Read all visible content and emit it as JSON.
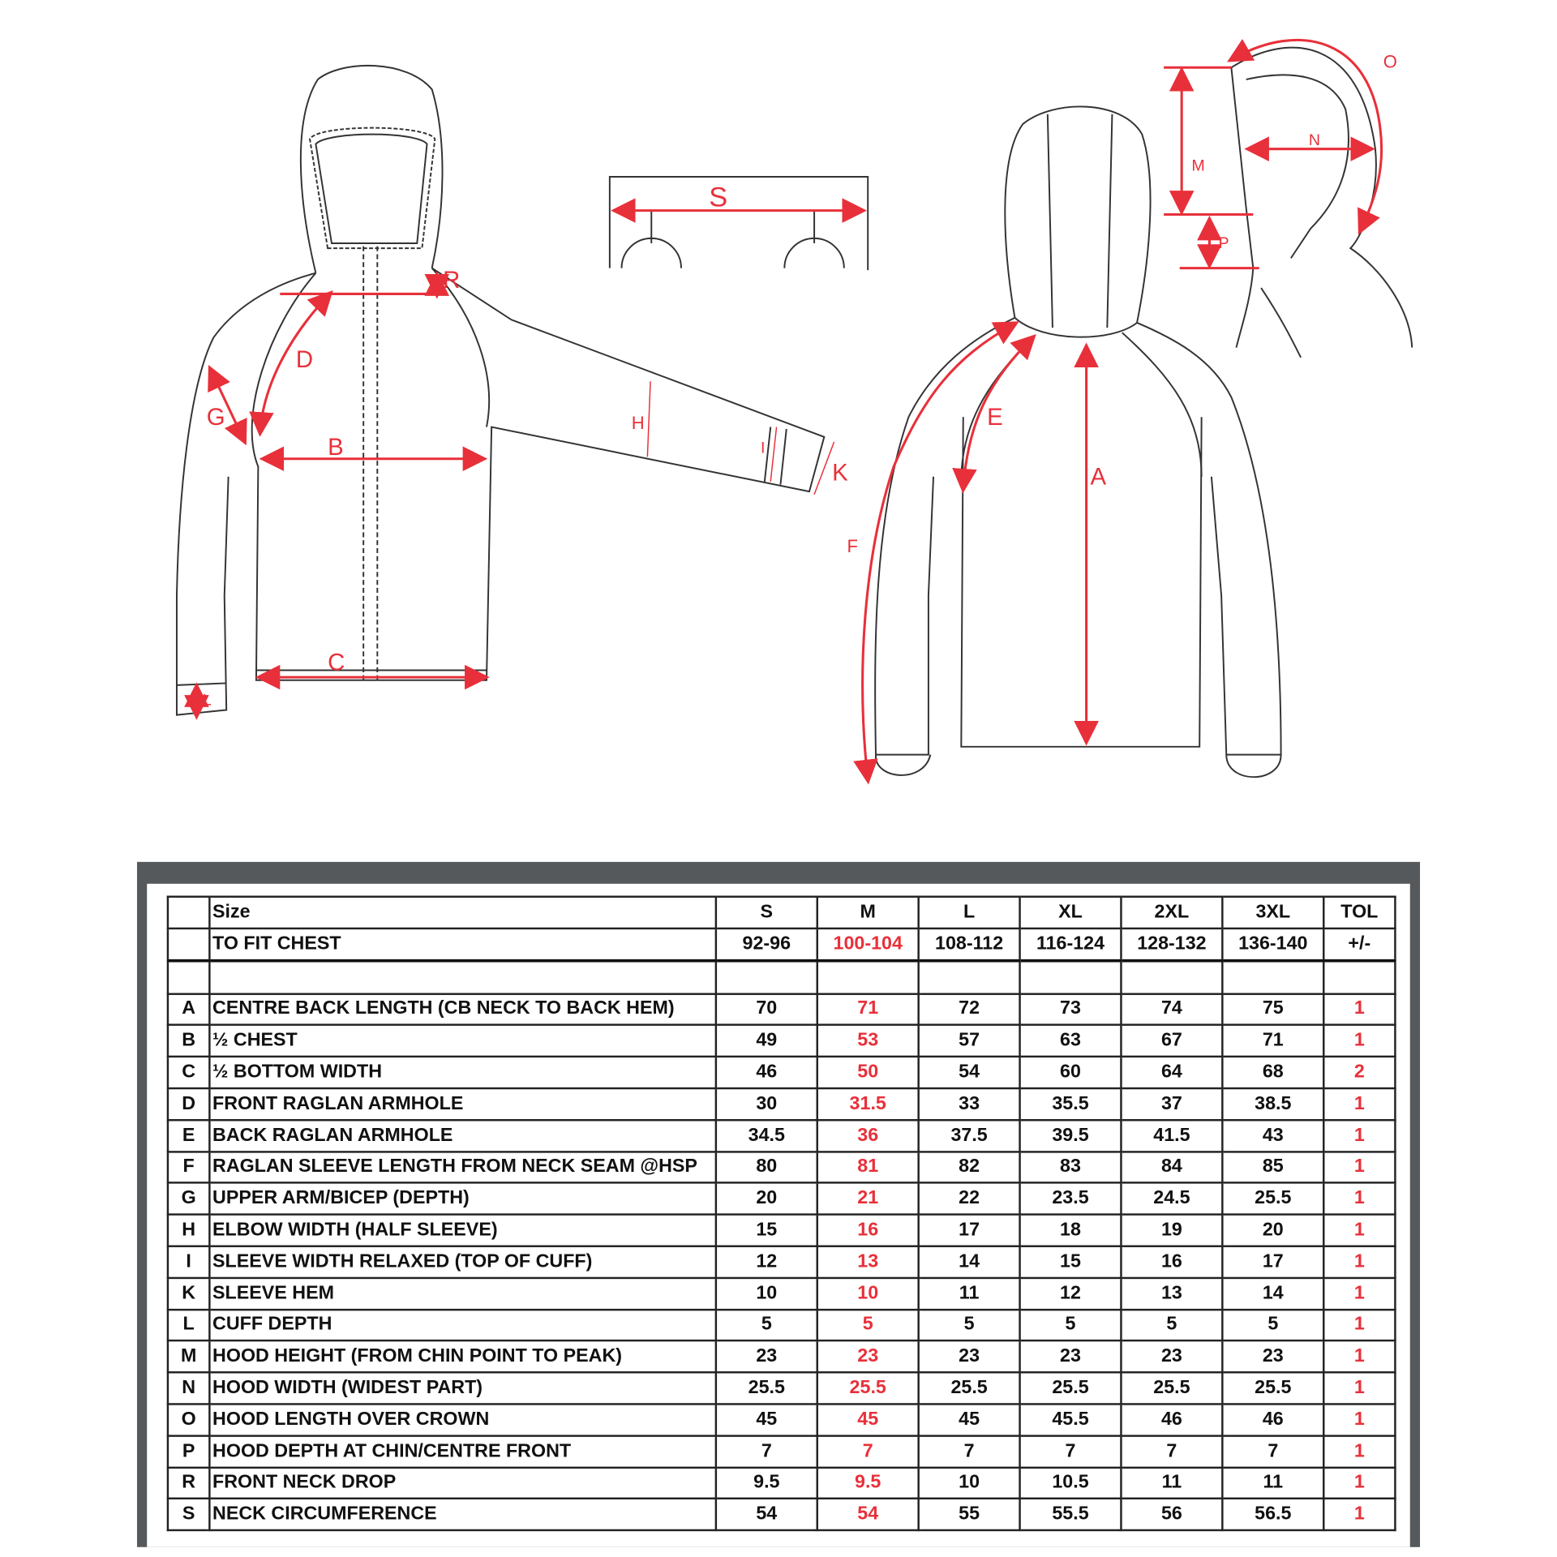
{
  "diagram": {
    "labels": {
      "S": "S",
      "R": "R",
      "D": "D",
      "G": "G",
      "B": "B",
      "H": "H",
      "I": "I",
      "K": "K",
      "C": "C",
      "L": "L",
      "F": "F",
      "E": "E",
      "A": "A",
      "M": "M",
      "N": "N",
      "O": "O",
      "P": "P"
    },
    "accent_color": "#e8303a"
  },
  "table": {
    "header": {
      "label": "Size",
      "sizes": [
        "S",
        "M",
        "L",
        "XL",
        "2XL",
        "3XL"
      ],
      "tol": "TOL"
    },
    "chest": {
      "label": "TO FIT CHEST",
      "values": [
        "92-96",
        "100-104",
        "108-112",
        "116-124",
        "128-132",
        "136-140"
      ],
      "tol": "+/-"
    },
    "highlight_column": "M",
    "rows": [
      {
        "code": "A",
        "desc": "CENTRE BACK LENGTH (CB NECK TO BACK HEM)",
        "values": [
          "70",
          "71",
          "72",
          "73",
          "74",
          "75"
        ],
        "tol": "1"
      },
      {
        "code": "B",
        "desc": "½ CHEST",
        "values": [
          "49",
          "53",
          "57",
          "63",
          "67",
          "71"
        ],
        "tol": "1"
      },
      {
        "code": "C",
        "desc": "½ BOTTOM WIDTH",
        "values": [
          "46",
          "50",
          "54",
          "60",
          "64",
          "68"
        ],
        "tol": "2"
      },
      {
        "code": "D",
        "desc": "FRONT RAGLAN ARMHOLE",
        "values": [
          "30",
          "31.5",
          "33",
          "35.5",
          "37",
          "38.5"
        ],
        "tol": "1"
      },
      {
        "code": "E",
        "desc": "BACK RAGLAN ARMHOLE",
        "values": [
          "34.5",
          "36",
          "37.5",
          "39.5",
          "41.5",
          "43"
        ],
        "tol": "1"
      },
      {
        "code": "F",
        "desc": "RAGLAN SLEEVE LENGTH FROM NECK SEAM @HSP",
        "values": [
          "80",
          "81",
          "82",
          "83",
          "84",
          "85"
        ],
        "tol": "1"
      },
      {
        "code": "G",
        "desc": "UPPER ARM/BICEP (DEPTH)",
        "values": [
          "20",
          "21",
          "22",
          "23.5",
          "24.5",
          "25.5"
        ],
        "tol": "1"
      },
      {
        "code": "H",
        "desc": "ELBOW WIDTH (HALF SLEEVE)",
        "values": [
          "15",
          "16",
          "17",
          "18",
          "19",
          "20"
        ],
        "tol": "1"
      },
      {
        "code": "I",
        "desc": "SLEEVE WIDTH RELAXED (TOP OF CUFF)",
        "values": [
          "12",
          "13",
          "14",
          "15",
          "16",
          "17"
        ],
        "tol": "1"
      },
      {
        "code": "K",
        "desc": "SLEEVE HEM",
        "values": [
          "10",
          "10",
          "11",
          "12",
          "13",
          "14"
        ],
        "tol": "1"
      },
      {
        "code": "L",
        "desc": "CUFF DEPTH",
        "values": [
          "5",
          "5",
          "5",
          "5",
          "5",
          "5"
        ],
        "tol": "1"
      },
      {
        "code": "M",
        "desc": "HOOD HEIGHT (FROM CHIN POINT TO PEAK)",
        "values": [
          "23",
          "23",
          "23",
          "23",
          "23",
          "23"
        ],
        "tol": "1"
      },
      {
        "code": "N",
        "desc": "HOOD WIDTH (WIDEST PART)",
        "values": [
          "25.5",
          "25.5",
          "25.5",
          "25.5",
          "25.5",
          "25.5"
        ],
        "tol": "1"
      },
      {
        "code": "O",
        "desc": "HOOD LENGTH OVER CROWN",
        "values": [
          "45",
          "45",
          "45",
          "45.5",
          "46",
          "46"
        ],
        "tol": "1"
      },
      {
        "code": "P",
        "desc": "HOOD DEPTH AT CHIN/CENTRE FRONT",
        "values": [
          "7",
          "7",
          "7",
          "7",
          "7",
          "7"
        ],
        "tol": "1"
      },
      {
        "code": "R",
        "desc": "FRONT NECK DROP",
        "values": [
          "9.5",
          "9.5",
          "10",
          "10.5",
          "11",
          "11"
        ],
        "tol": "1"
      },
      {
        "code": "S",
        "desc": "NECK CIRCUMFERENCE",
        "values": [
          "54",
          "54",
          "55",
          "55.5",
          "56",
          "56.5"
        ],
        "tol": "1"
      }
    ]
  }
}
